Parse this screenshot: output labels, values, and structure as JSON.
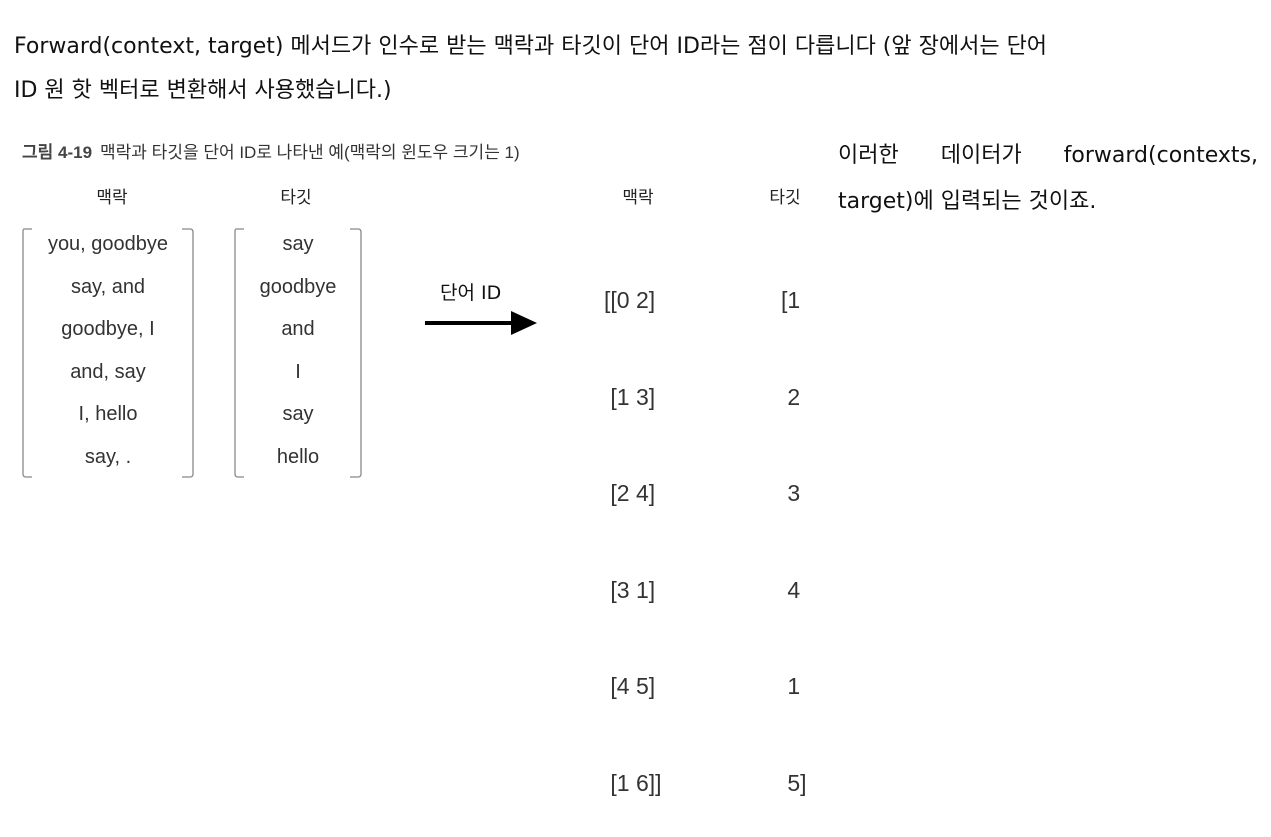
{
  "intro": {
    "line1": "Forward(context, target) 메서드가 인수로 받는 맥락과 타깃이 단어 ID라는 점이 다릅니다 (앞 장에서는 단어",
    "line2": "ID 원 핫 벡터로 변환해서 사용했습니다.)"
  },
  "figure": {
    "number": "그림 4-19",
    "caption": "맥락과 타깃을 단어 ID로 나타낸 예(맥락의 윈도우 크기는 1)",
    "left_context_header": "맥락",
    "left_target_header": "타깃",
    "contexts": [
      "you, goodbye",
      "say, and",
      "goodbye, I",
      "and, say",
      "I, hello",
      "say, ."
    ],
    "targets": [
      "say",
      "goodbye",
      "and",
      "I",
      "say",
      "hello"
    ],
    "arrow_label": "단어 ID",
    "right_context_header": "맥락",
    "right_target_header": "타깃",
    "context_ids": [
      "[[0 2]",
      " [1 3]",
      " [2 4]",
      " [3 1]",
      " [4 5]",
      " [1 6]]"
    ],
    "target_ids": [
      "[1",
      " 2",
      " 3",
      " 4",
      " 1",
      " 5]"
    ]
  },
  "side": {
    "word1": "이러한",
    "word2": "데이터가",
    "word3": "forward(contexts,",
    "line2": "target)에 입력되는 것이죠."
  }
}
